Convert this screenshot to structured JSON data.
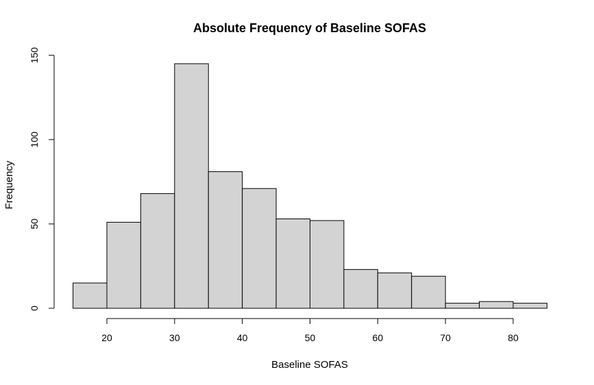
{
  "chart_data": {
    "type": "bar",
    "title": "Absolute Frequency of Baseline SOFAS",
    "xlabel": "Baseline SOFAS",
    "ylabel": "Frequency",
    "bin_edges": [
      15,
      20,
      25,
      30,
      35,
      40,
      45,
      50,
      55,
      60,
      65,
      70,
      75,
      80,
      85
    ],
    "values": [
      15,
      51,
      68,
      145,
      81,
      71,
      53,
      52,
      23,
      21,
      19,
      3,
      4,
      3
    ],
    "xlim": [
      15,
      85
    ],
    "ylim": [
      0,
      150
    ],
    "x_ticks": [
      20,
      30,
      40,
      50,
      60,
      70,
      80
    ],
    "y_ticks": [
      0,
      50,
      100,
      150
    ],
    "bar_color": "#d3d3d3",
    "grid": false
  }
}
